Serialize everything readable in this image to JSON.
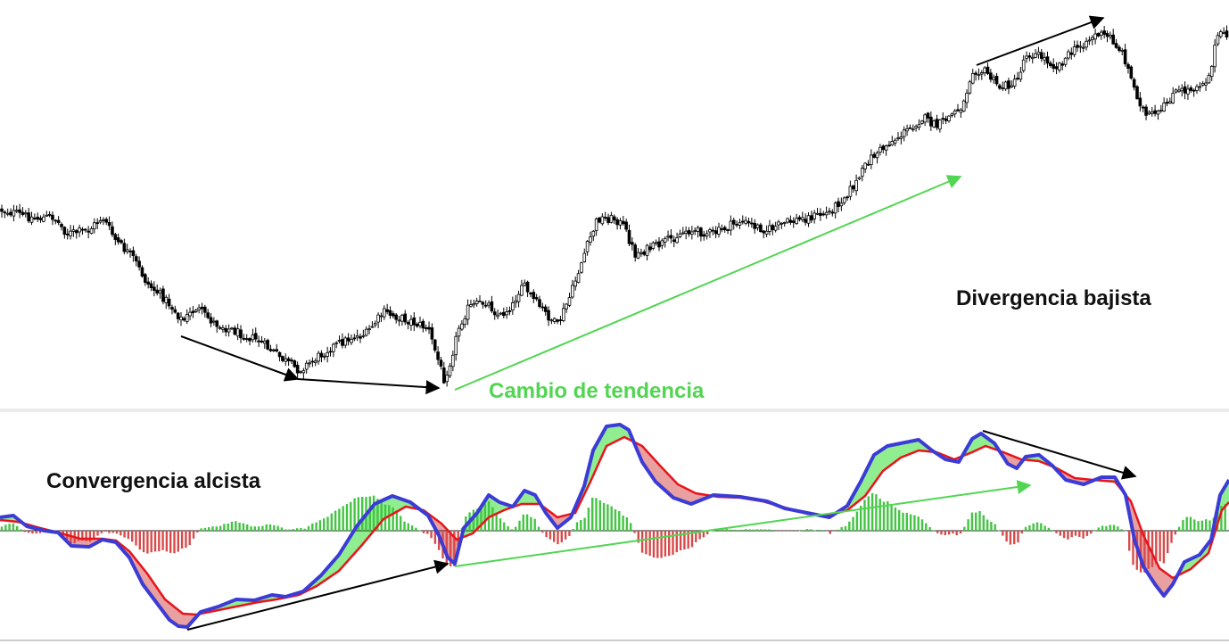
{
  "chart_data": [
    {
      "type": "candlestick",
      "panel": "price",
      "title": "",
      "xlabel": "",
      "ylabel": "",
      "grid": false,
      "trend_points": [
        [
          0,
          235
        ],
        [
          20,
          240
        ],
        [
          40,
          245
        ],
        [
          60,
          243
        ],
        [
          75,
          262
        ],
        [
          100,
          258
        ],
        [
          115,
          243
        ],
        [
          130,
          270
        ],
        [
          150,
          290
        ],
        [
          165,
          318
        ],
        [
          185,
          335
        ],
        [
          205,
          360
        ],
        [
          220,
          345
        ],
        [
          240,
          362
        ],
        [
          265,
          372
        ],
        [
          290,
          382
        ],
        [
          320,
          405
        ],
        [
          335,
          415
        ],
        [
          350,
          405
        ],
        [
          370,
          390
        ],
        [
          395,
          378
        ],
        [
          410,
          375
        ],
        [
          430,
          350
        ],
        [
          460,
          360
        ],
        [
          480,
          368
        ],
        [
          498,
          425
        ],
        [
          505,
          405
        ],
        [
          515,
          365
        ],
        [
          525,
          345
        ],
        [
          545,
          338
        ],
        [
          560,
          355
        ],
        [
          575,
          342
        ],
        [
          585,
          318
        ],
        [
          600,
          338
        ],
        [
          615,
          355
        ],
        [
          625,
          365
        ],
        [
          640,
          330
        ],
        [
          655,
          285
        ],
        [
          670,
          245
        ],
        [
          690,
          245
        ],
        [
          700,
          255
        ],
        [
          712,
          285
        ],
        [
          725,
          280
        ],
        [
          745,
          272
        ],
        [
          770,
          258
        ],
        [
          800,
          262
        ],
        [
          830,
          248
        ],
        [
          860,
          258
        ],
        [
          880,
          250
        ],
        [
          910,
          243
        ],
        [
          930,
          238
        ],
        [
          945,
          222
        ],
        [
          960,
          205
        ],
        [
          975,
          178
        ],
        [
          995,
          162
        ],
        [
          1015,
          148
        ],
        [
          1035,
          132
        ],
        [
          1050,
          142
        ],
        [
          1065,
          130
        ],
        [
          1080,
          118
        ],
        [
          1090,
          78
        ],
        [
          1105,
          80
        ],
        [
          1120,
          98
        ],
        [
          1140,
          92
        ],
        [
          1150,
          60
        ],
        [
          1165,
          62
        ],
        [
          1185,
          75
        ],
        [
          1200,
          60
        ],
        [
          1215,
          48
        ],
        [
          1230,
          38
        ],
        [
          1245,
          42
        ],
        [
          1260,
          62
        ],
        [
          1272,
          100
        ],
        [
          1285,
          130
        ],
        [
          1300,
          128
        ],
        [
          1315,
          105
        ],
        [
          1335,
          100
        ],
        [
          1355,
          88
        ],
        [
          1365,
          40
        ],
        [
          1378,
          40
        ]
      ]
    },
    {
      "type": "macd",
      "panel": "oscillator",
      "title": "",
      "xlabel": "",
      "ylabel": "",
      "grid": false,
      "series": [
        {
          "name": "",
          "color": "#3b3bd6",
          "points": [
            [
              0,
              580
            ],
            [
              15,
              578
            ],
            [
              30,
              590
            ],
            [
              50,
              595
            ],
            [
              65,
              597
            ],
            [
              80,
              612
            ],
            [
              100,
              613
            ],
            [
              115,
              605
            ],
            [
              130,
              608
            ],
            [
              145,
              625
            ],
            [
              160,
              655
            ],
            [
              175,
              675
            ],
            [
              190,
              695
            ],
            [
              200,
              702
            ],
            [
              210,
              703
            ],
            [
              225,
              686
            ],
            [
              245,
              680
            ],
            [
              265,
              672
            ],
            [
              285,
              673
            ],
            [
              305,
              667
            ],
            [
              320,
              669
            ],
            [
              340,
              663
            ],
            [
              360,
              645
            ],
            [
              380,
              622
            ],
            [
              400,
              590
            ],
            [
              420,
              565
            ],
            [
              440,
              556
            ],
            [
              460,
              563
            ],
            [
              480,
              578
            ],
            [
              492,
              600
            ],
            [
              502,
              625
            ],
            [
              510,
              632
            ],
            [
              520,
              592
            ],
            [
              535,
              575
            ],
            [
              548,
              555
            ],
            [
              560,
              563
            ],
            [
              575,
              568
            ],
            [
              588,
              550
            ],
            [
              600,
              555
            ],
            [
              612,
              575
            ],
            [
              625,
              592
            ],
            [
              640,
              580
            ],
            [
              655,
              545
            ],
            [
              665,
              505
            ],
            [
              680,
              478
            ],
            [
              695,
              476
            ],
            [
              705,
              482
            ],
            [
              720,
              518
            ],
            [
              735,
              540
            ],
            [
              755,
              558
            ],
            [
              775,
              565
            ],
            [
              800,
              555
            ],
            [
              830,
              557
            ],
            [
              860,
              562
            ],
            [
              880,
              570
            ],
            [
              905,
              575
            ],
            [
              930,
              580
            ],
            [
              950,
              567
            ],
            [
              965,
              540
            ],
            [
              980,
              510
            ],
            [
              995,
              500
            ],
            [
              1010,
              497
            ],
            [
              1030,
              493
            ],
            [
              1045,
              505
            ],
            [
              1060,
              515
            ],
            [
              1075,
              518
            ],
            [
              1090,
              492
            ],
            [
              1100,
              486
            ],
            [
              1115,
              497
            ],
            [
              1130,
              520
            ],
            [
              1140,
              525
            ],
            [
              1150,
              512
            ],
            [
              1165,
              510
            ],
            [
              1180,
              522
            ],
            [
              1195,
              538
            ],
            [
              1215,
              543
            ],
            [
              1235,
              535
            ],
            [
              1250,
              535
            ],
            [
              1262,
              555
            ],
            [
              1272,
              605
            ],
            [
              1282,
              635
            ],
            [
              1295,
              655
            ],
            [
              1305,
              668
            ],
            [
              1315,
              655
            ],
            [
              1328,
              630
            ],
            [
              1345,
              622
            ],
            [
              1358,
              605
            ],
            [
              1368,
              555
            ],
            [
              1378,
              538
            ]
          ]
        },
        {
          "name": "",
          "color": "#e8141b",
          "points": [
            [
              0,
              583
            ],
            [
              20,
              585
            ],
            [
              45,
              592
            ],
            [
              65,
              597
            ],
            [
              90,
              604
            ],
            [
              115,
              604
            ],
            [
              130,
              606
            ],
            [
              145,
              618
            ],
            [
              165,
              643
            ],
            [
              185,
              672
            ],
            [
              205,
              688
            ],
            [
              220,
              689
            ],
            [
              240,
              685
            ],
            [
              265,
              680
            ],
            [
              290,
              675
            ],
            [
              310,
              672
            ],
            [
              335,
              667
            ],
            [
              355,
              657
            ],
            [
              380,
              640
            ],
            [
              405,
              612
            ],
            [
              430,
              582
            ],
            [
              455,
              568
            ],
            [
              475,
              572
            ],
            [
              495,
              587
            ],
            [
              512,
              605
            ],
            [
              530,
              598
            ],
            [
              548,
              580
            ],
            [
              565,
              572
            ],
            [
              585,
              565
            ],
            [
              605,
              565
            ],
            [
              625,
              580
            ],
            [
              645,
              575
            ],
            [
              662,
              540
            ],
            [
              680,
              500
            ],
            [
              700,
              490
            ],
            [
              720,
              500
            ],
            [
              740,
              522
            ],
            [
              760,
              543
            ],
            [
              780,
              553
            ],
            [
              805,
              557
            ],
            [
              830,
              558
            ],
            [
              855,
              562
            ],
            [
              880,
              569
            ],
            [
              905,
              576
            ],
            [
              925,
              579
            ],
            [
              950,
              572
            ],
            [
              970,
              556
            ],
            [
              990,
              528
            ],
            [
              1010,
              513
            ],
            [
              1030,
              505
            ],
            [
              1050,
              507
            ],
            [
              1070,
              515
            ],
            [
              1090,
              507
            ],
            [
              1105,
              500
            ],
            [
              1125,
              507
            ],
            [
              1145,
              515
            ],
            [
              1165,
              517
            ],
            [
              1185,
              525
            ],
            [
              1205,
              536
            ],
            [
              1225,
              538
            ],
            [
              1250,
              540
            ],
            [
              1268,
              562
            ],
            [
              1282,
              600
            ],
            [
              1300,
              637
            ],
            [
              1315,
              648
            ],
            [
              1335,
              638
            ],
            [
              1355,
              620
            ],
            [
              1370,
              572
            ],
            [
              1378,
              563
            ]
          ]
        }
      ]
    }
  ],
  "annotations": {
    "divergence_label": "Divergencia bajista",
    "trend_change_label": "Cambio de tendencia",
    "convergence_label": "Convergencia alcista"
  },
  "colors": {
    "price_arrows": "#000000",
    "trend_arrow": "#52d552",
    "macd_line": "#3b3bd6",
    "signal_line": "#e8141b",
    "positive_fill": "#90ee90",
    "negative_fill": "#e8a0a0",
    "positive_histogram": "#43c443",
    "negative_histogram": "#d84a4a",
    "label_green": "#52d552"
  }
}
